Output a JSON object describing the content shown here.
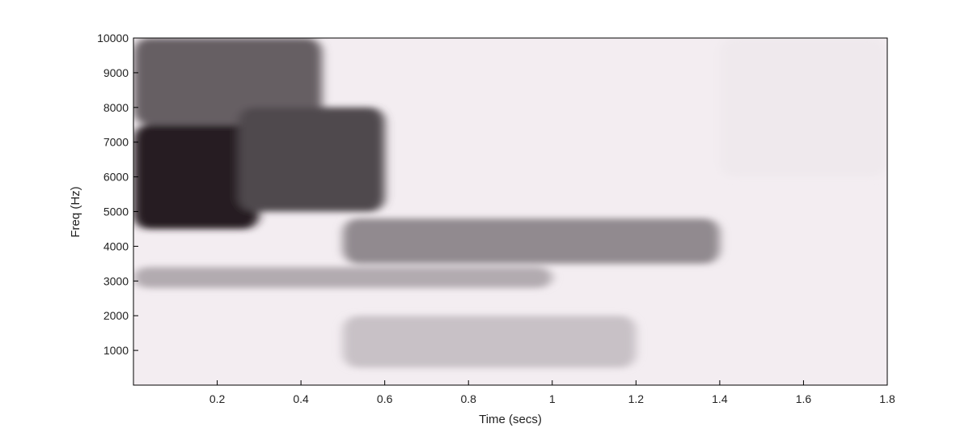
{
  "chart_data": {
    "type": "heatmap",
    "title": "",
    "xlabel": "Time (secs)",
    "ylabel": "Freq (Hz)",
    "xlim": [
      0,
      1.8
    ],
    "ylim": [
      0,
      10000
    ],
    "x_ticks": [
      0.2,
      0.4,
      0.6,
      0.8,
      1,
      1.2,
      1.4,
      1.6,
      1.8
    ],
    "x_tick_labels": [
      "0.2",
      "0.4",
      "0.6",
      "0.8",
      "1",
      "1.2",
      "1.4",
      "1.6",
      "1.8"
    ],
    "y_ticks": [
      1000,
      2000,
      3000,
      4000,
      5000,
      6000,
      7000,
      8000,
      9000,
      10000
    ],
    "y_tick_labels": [
      "1000",
      "2000",
      "3000",
      "4000",
      "5000",
      "6000",
      "7000",
      "8000",
      "9000",
      "10000"
    ],
    "grid": false,
    "colormap": "gray_reversed",
    "intensity_regions": [
      {
        "t_start": 0.0,
        "t_end": 0.3,
        "f_start": 4500,
        "f_end": 7500,
        "intensity": 0.95
      },
      {
        "t_start": 0.0,
        "t_end": 0.45,
        "f_start": 7500,
        "f_end": 10000,
        "intensity": 0.65
      },
      {
        "t_start": 0.25,
        "t_end": 0.6,
        "f_start": 5000,
        "f_end": 8000,
        "intensity": 0.75
      },
      {
        "t_start": 0.5,
        "t_end": 1.4,
        "f_start": 3500,
        "f_end": 4800,
        "intensity": 0.45
      },
      {
        "t_start": 0.0,
        "t_end": 1.0,
        "f_start": 2800,
        "f_end": 3400,
        "intensity": 0.3
      },
      {
        "t_start": 0.5,
        "t_end": 1.2,
        "f_start": 500,
        "f_end": 2000,
        "intensity": 0.2
      },
      {
        "t_start": 1.4,
        "t_end": 1.8,
        "f_start": 6000,
        "f_end": 10000,
        "intensity": 0.02
      }
    ],
    "colors": {
      "darkest": "#1a1218",
      "lightest": "#f3edf1",
      "axis": "#000000"
    }
  }
}
